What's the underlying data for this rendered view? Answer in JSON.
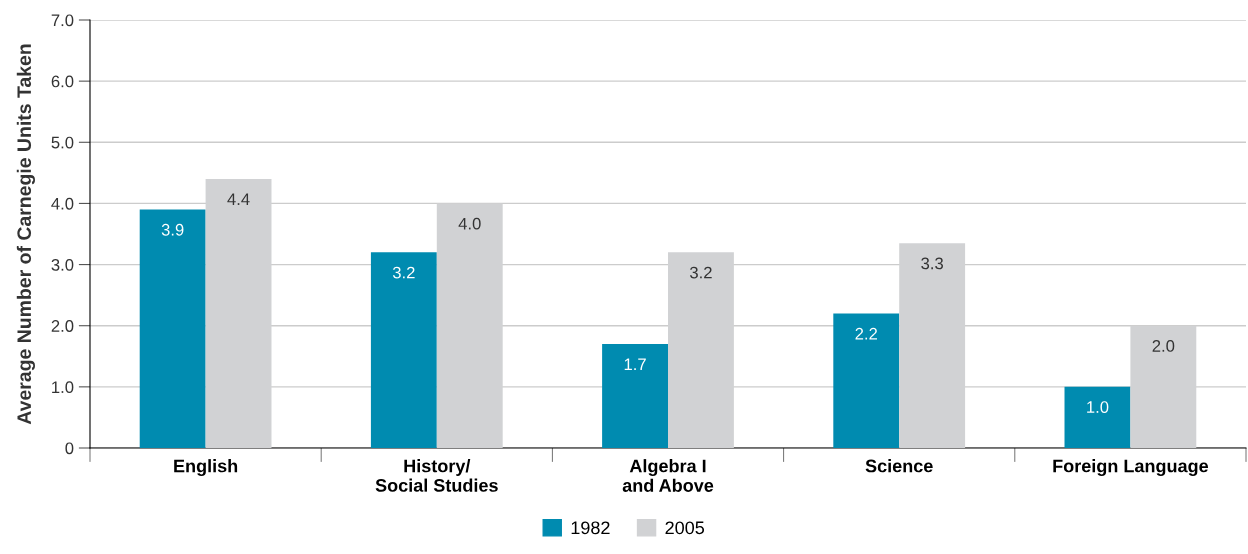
{
  "chart_data": {
    "type": "bar",
    "ylabel": "Average Number of Carnegie Units Taken",
    "categories": [
      "English",
      "History/\nSocial Studies",
      "Algebra I\nand Above",
      "Science",
      "Foreign Language"
    ],
    "series": [
      {
        "name": "1982",
        "color": "#008bb0",
        "values": [
          3.9,
          3.2,
          1.7,
          2.2,
          1.0
        ],
        "value_labels": [
          "3.9",
          "3.2",
          "1.7",
          "2.2",
          "1.0"
        ]
      },
      {
        "name": "2005",
        "color": "#d1d2d4",
        "values": [
          4.4,
          4.0,
          3.2,
          3.35,
          2.0
        ],
        "value_labels": [
          "4.4",
          "4.0",
          "3.2",
          "3.3",
          "2.0"
        ]
      }
    ],
    "ylim": [
      0,
      7
    ],
    "yticks": [
      0,
      {
        "value": 1,
        "label": "1.0"
      },
      {
        "value": 2,
        "label": "2.0"
      },
      {
        "value": 3,
        "label": "3.0"
      },
      {
        "value": 4,
        "label": "4.0"
      },
      {
        "value": 5,
        "label": "5.0"
      },
      {
        "value": 6,
        "label": "6.0"
      },
      {
        "value": 7,
        "label": "7.0"
      }
    ],
    "grid": "y",
    "legend": "bottom"
  }
}
